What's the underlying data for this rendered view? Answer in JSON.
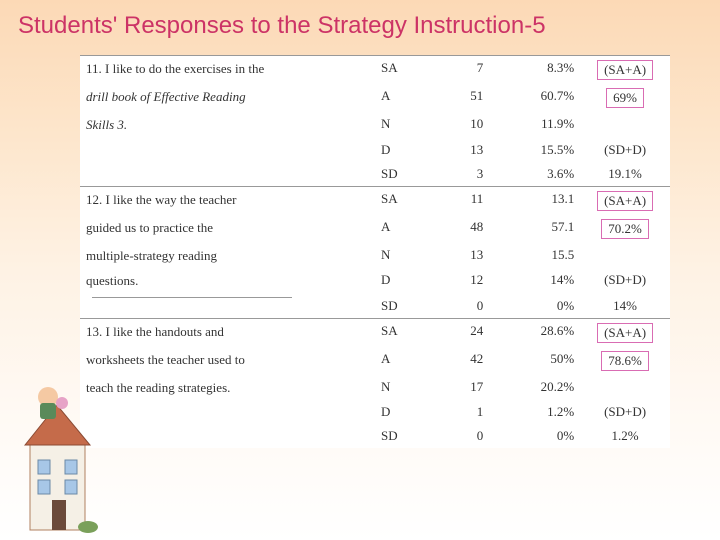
{
  "title": "Students' Responses to the Strategy Instruction-5",
  "table": {
    "groups": [
      {
        "statement_lines": [
          {
            "text": "11. I like to do the exercises in the",
            "italic": false
          },
          {
            "text": "drill book of Effective Reading",
            "italic": true
          },
          {
            "text": "Skills 3.",
            "italic": true
          }
        ],
        "rows": [
          {
            "code": "SA",
            "n": "7",
            "pct": "8.3%",
            "group": "(SA+A)",
            "hl": true
          },
          {
            "code": "A",
            "n": "51",
            "pct": "60.7%",
            "group": "69%",
            "hl": true
          },
          {
            "code": "N",
            "n": "10",
            "pct": "11.9%",
            "group": "",
            "hl": false
          },
          {
            "code": "D",
            "n": "13",
            "pct": "15.5%",
            "group": "(SD+D)",
            "hl": false
          },
          {
            "code": "SD",
            "n": "3",
            "pct": "3.6%",
            "group": "19.1%",
            "hl": false
          }
        ]
      },
      {
        "statement_lines": [
          {
            "text": "12. I like the way the teacher",
            "italic": false
          },
          {
            "text": "guided us to practice the",
            "italic": false
          },
          {
            "text": "multiple-strategy reading",
            "italic": false
          },
          {
            "text": "questions.",
            "italic": false
          }
        ],
        "rows": [
          {
            "code": "SA",
            "n": "11",
            "pct": "13.1",
            "group": "(SA+A)",
            "hl": true
          },
          {
            "code": "A",
            "n": "48",
            "pct": "57.1",
            "group": "70.2%",
            "hl": true
          },
          {
            "code": "N",
            "n": "13",
            "pct": "15.5",
            "group": "",
            "hl": false
          },
          {
            "code": "D",
            "n": "12",
            "pct": "14%",
            "group": "(SD+D)",
            "hl": false
          },
          {
            "code": "SD",
            "n": "0",
            "pct": "0%",
            "group": "14%",
            "hl": false
          }
        ]
      },
      {
        "statement_lines": [
          {
            "text": "13. I like the handouts and",
            "italic": false
          },
          {
            "text": "worksheets the teacher used to",
            "italic": false
          },
          {
            "text": "teach the reading strategies.",
            "italic": false
          }
        ],
        "rows": [
          {
            "code": "SA",
            "n": "24",
            "pct": "28.6%",
            "group": "(SA+A)",
            "hl": true
          },
          {
            "code": "A",
            "n": "42",
            "pct": "50%",
            "group": "78.6%",
            "hl": true
          },
          {
            "code": "N",
            "n": "17",
            "pct": "20.2%",
            "group": "",
            "hl": false
          },
          {
            "code": "D",
            "n": "1",
            "pct": "1.2%",
            "group": "(SD+D)",
            "hl": false
          },
          {
            "code": "SD",
            "n": "0",
            "pct": "0%",
            "group": "1.2%",
            "hl": false
          }
        ]
      }
    ]
  },
  "styling": {
    "title_color": "#cc3366",
    "title_fontsize": 24,
    "highlight_border": "#d96cb3",
    "table_fontsize": 13,
    "background_gradient": [
      "#fcd9b6",
      "#ffffff"
    ],
    "separator_color": "#999999"
  }
}
